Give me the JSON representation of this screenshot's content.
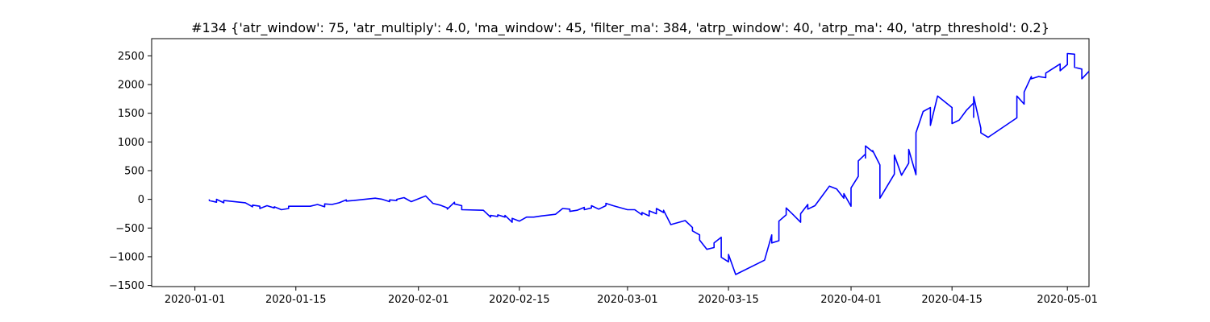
{
  "chart_data": {
    "type": "line",
    "title": "#134 {'atr_window': 75, 'atr_multiply': 4.0, 'ma_window': 45, 'filter_ma': 384, 'atrp_window': 40, 'atrp_ma': 40, 'atrp_threshold': 0.2}",
    "xlabel": "",
    "ylabel": "",
    "x_type": "date",
    "xlim": [
      "2019-12-26",
      "2020-05-04"
    ],
    "ylim": [
      -1520,
      2800
    ],
    "x_ticks": [
      "2020-01-01",
      "2020-01-15",
      "2020-02-01",
      "2020-02-15",
      "2020-03-01",
      "2020-03-15",
      "2020-04-01",
      "2020-04-15",
      "2020-05-01"
    ],
    "y_ticks": [
      -1500,
      -1000,
      -500,
      0,
      500,
      1000,
      1500,
      2000,
      2500
    ],
    "grid": false,
    "legend": "none",
    "line_color": "#0000ff",
    "series": [
      {
        "points": [
          [
            "2020-01-03",
            0
          ],
          [
            "2020-01-03",
            -20
          ],
          [
            "2020-01-04",
            -50
          ],
          [
            "2020-01-04",
            0
          ],
          [
            "2020-01-05",
            -60
          ],
          [
            "2020-01-05",
            -20
          ],
          [
            "2020-01-08",
            -60
          ],
          [
            "2020-01-09",
            -130
          ],
          [
            "2020-01-09",
            -100
          ],
          [
            "2020-01-10",
            -120
          ],
          [
            "2020-01-10",
            -160
          ],
          [
            "2020-01-11",
            -110
          ],
          [
            "2020-01-12",
            -150
          ],
          [
            "2020-01-12",
            -130
          ],
          [
            "2020-01-13",
            -180
          ],
          [
            "2020-01-14",
            -160
          ],
          [
            "2020-01-14",
            -120
          ],
          [
            "2020-01-17",
            -120
          ],
          [
            "2020-01-18",
            -90
          ],
          [
            "2020-01-19",
            -130
          ],
          [
            "2020-01-19",
            -80
          ],
          [
            "2020-01-20",
            -90
          ],
          [
            "2020-01-21",
            -60
          ],
          [
            "2020-01-22",
            -10
          ],
          [
            "2020-01-22",
            -30
          ],
          [
            "2020-01-23",
            -20
          ],
          [
            "2020-01-26",
            20
          ],
          [
            "2020-01-27",
            0
          ],
          [
            "2020-01-28",
            -40
          ],
          [
            "2020-01-28",
            -10
          ],
          [
            "2020-01-29",
            -20
          ],
          [
            "2020-01-29",
            0
          ],
          [
            "2020-01-30",
            30
          ],
          [
            "2020-01-31",
            -40
          ],
          [
            "2020-02-02",
            60
          ],
          [
            "2020-02-03",
            -70
          ],
          [
            "2020-02-04",
            -100
          ],
          [
            "2020-02-05",
            -150
          ],
          [
            "2020-02-05",
            -170
          ],
          [
            "2020-02-06",
            -50
          ],
          [
            "2020-02-06",
            -80
          ],
          [
            "2020-02-07",
            -110
          ],
          [
            "2020-02-07",
            -180
          ],
          [
            "2020-02-10",
            -190
          ],
          [
            "2020-02-11",
            -310
          ],
          [
            "2020-02-11",
            -280
          ],
          [
            "2020-02-12",
            -300
          ],
          [
            "2020-02-12",
            -270
          ],
          [
            "2020-02-13",
            -310
          ],
          [
            "2020-02-13",
            -280
          ],
          [
            "2020-02-14",
            -400
          ],
          [
            "2020-02-14",
            -330
          ],
          [
            "2020-02-15",
            -380
          ],
          [
            "2020-02-16",
            -310
          ],
          [
            "2020-02-17",
            -310
          ],
          [
            "2020-02-18",
            -290
          ],
          [
            "2020-02-20",
            -260
          ],
          [
            "2020-02-21",
            -160
          ],
          [
            "2020-02-22",
            -170
          ],
          [
            "2020-02-22",
            -210
          ],
          [
            "2020-02-23",
            -190
          ],
          [
            "2020-02-24",
            -140
          ],
          [
            "2020-02-24",
            -180
          ],
          [
            "2020-02-25",
            -150
          ],
          [
            "2020-02-25",
            -110
          ],
          [
            "2020-02-26",
            -170
          ],
          [
            "2020-02-27",
            -110
          ],
          [
            "2020-02-27",
            -70
          ],
          [
            "2020-02-28",
            -110
          ],
          [
            "2020-03-01",
            -180
          ],
          [
            "2020-03-02",
            -180
          ],
          [
            "2020-03-03",
            -270
          ],
          [
            "2020-03-03",
            -230
          ],
          [
            "2020-03-04",
            -290
          ],
          [
            "2020-03-04",
            -200
          ],
          [
            "2020-03-05",
            -250
          ],
          [
            "2020-03-05",
            -160
          ],
          [
            "2020-03-06",
            -230
          ],
          [
            "2020-03-06",
            -190
          ],
          [
            "2020-03-07",
            -440
          ],
          [
            "2020-03-09",
            -370
          ],
          [
            "2020-03-10",
            -490
          ],
          [
            "2020-03-10",
            -550
          ],
          [
            "2020-03-11",
            -620
          ],
          [
            "2020-03-11",
            -710
          ],
          [
            "2020-03-12",
            -870
          ],
          [
            "2020-03-13",
            -840
          ],
          [
            "2020-03-13",
            -760
          ],
          [
            "2020-03-14",
            -660
          ],
          [
            "2020-03-14",
            -1010
          ],
          [
            "2020-03-15",
            -1090
          ],
          [
            "2020-03-15",
            -960
          ],
          [
            "2020-03-16",
            -1310
          ],
          [
            "2020-03-20",
            -1060
          ],
          [
            "2020-03-21",
            -620
          ],
          [
            "2020-03-21",
            -760
          ],
          [
            "2020-03-22",
            -720
          ],
          [
            "2020-03-22",
            -380
          ],
          [
            "2020-03-23",
            -270
          ],
          [
            "2020-03-23",
            -150
          ],
          [
            "2020-03-24",
            -270
          ],
          [
            "2020-03-25",
            -400
          ],
          [
            "2020-03-25",
            -250
          ],
          [
            "2020-03-26",
            -90
          ],
          [
            "2020-03-26",
            -170
          ],
          [
            "2020-03-27",
            -110
          ],
          [
            "2020-03-29",
            230
          ],
          [
            "2020-03-30",
            180
          ],
          [
            "2020-03-31",
            20
          ],
          [
            "2020-03-31",
            100
          ],
          [
            "2020-04-01",
            -120
          ],
          [
            "2020-04-01",
            200
          ],
          [
            "2020-04-02",
            400
          ],
          [
            "2020-04-02",
            670
          ],
          [
            "2020-04-03",
            790
          ],
          [
            "2020-04-03",
            720
          ],
          [
            "2020-04-03",
            930
          ],
          [
            "2020-04-04",
            830
          ],
          [
            "2020-04-04",
            850
          ],
          [
            "2020-04-05",
            600
          ],
          [
            "2020-04-05",
            20
          ],
          [
            "2020-04-07",
            440
          ],
          [
            "2020-04-07",
            770
          ],
          [
            "2020-04-08",
            420
          ],
          [
            "2020-04-09",
            630
          ],
          [
            "2020-04-09",
            870
          ],
          [
            "2020-04-10",
            430
          ],
          [
            "2020-04-10",
            1160
          ],
          [
            "2020-04-11",
            1530
          ],
          [
            "2020-04-12",
            1600
          ],
          [
            "2020-04-12",
            1290
          ],
          [
            "2020-04-13",
            1800
          ],
          [
            "2020-04-15",
            1600
          ],
          [
            "2020-04-15",
            1320
          ],
          [
            "2020-04-16",
            1380
          ],
          [
            "2020-04-17",
            1550
          ],
          [
            "2020-04-18",
            1680
          ],
          [
            "2020-04-18",
            1430
          ],
          [
            "2020-04-18",
            1790
          ],
          [
            "2020-04-19",
            1240
          ],
          [
            "2020-04-19",
            1160
          ],
          [
            "2020-04-20",
            1080
          ],
          [
            "2020-04-24",
            1420
          ],
          [
            "2020-04-24",
            1800
          ],
          [
            "2020-04-25",
            1660
          ],
          [
            "2020-04-25",
            1870
          ],
          [
            "2020-04-26",
            2140
          ],
          [
            "2020-04-26",
            2100
          ],
          [
            "2020-04-27",
            2140
          ],
          [
            "2020-04-28",
            2120
          ],
          [
            "2020-04-28",
            2200
          ],
          [
            "2020-04-30",
            2360
          ],
          [
            "2020-04-30",
            2240
          ],
          [
            "2020-05-01",
            2350
          ],
          [
            "2020-05-01",
            2540
          ],
          [
            "2020-05-02",
            2530
          ],
          [
            "2020-05-02",
            2300
          ],
          [
            "2020-05-03",
            2270
          ],
          [
            "2020-05-03",
            2100
          ],
          [
            "2020-05-04",
            2230
          ]
        ]
      }
    ]
  }
}
